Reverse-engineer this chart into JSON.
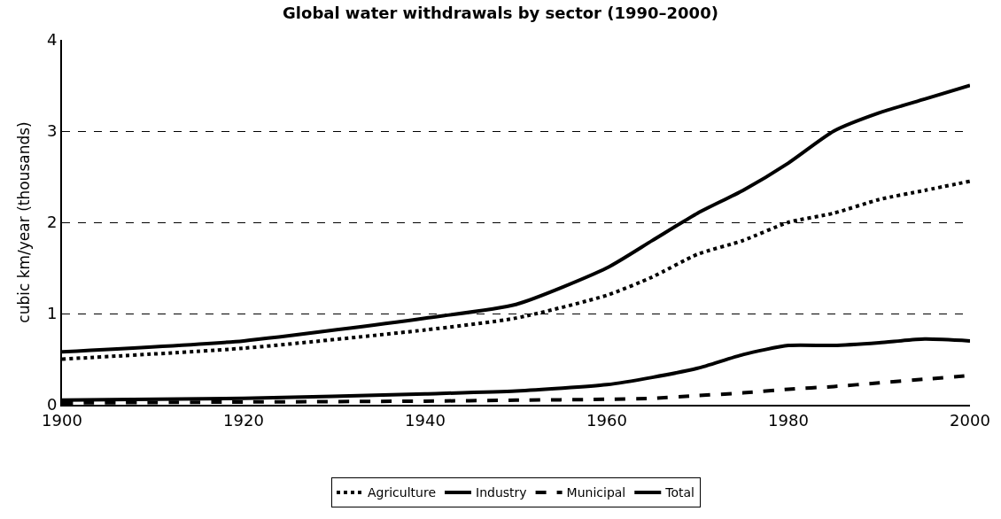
{
  "chart_data": {
    "type": "line",
    "title": "Global water withdrawals by sector (1990–2000)",
    "ylabel": "cubic km/year (thousands)",
    "x": [
      1900,
      1920,
      1940,
      1950,
      1960,
      1965,
      1970,
      1975,
      1980,
      1985,
      1990,
      1995,
      2000
    ],
    "series": [
      {
        "name": "Agriculture",
        "color": "#000000",
        "line_style": "dotted",
        "values": [
          0.5,
          0.62,
          0.82,
          0.95,
          1.2,
          1.4,
          1.65,
          1.8,
          2.0,
          2.1,
          2.25,
          2.35,
          2.45
        ]
      },
      {
        "name": "Industry",
        "color": "#000000",
        "line_style": "solid",
        "values": [
          0.05,
          0.07,
          0.12,
          0.15,
          0.22,
          0.3,
          0.4,
          0.55,
          0.65,
          0.65,
          0.68,
          0.72,
          0.7
        ]
      },
      {
        "name": "Municipal",
        "color": "#000000",
        "line_style": "dashed",
        "values": [
          0.02,
          0.03,
          0.04,
          0.05,
          0.06,
          0.07,
          0.1,
          0.13,
          0.17,
          0.2,
          0.24,
          0.28,
          0.32
        ]
      },
      {
        "name": "Total",
        "color": "#000000",
        "line_style": "solid",
        "values": [
          0.58,
          0.7,
          0.95,
          1.1,
          1.5,
          1.8,
          2.1,
          2.35,
          2.65,
          3.0,
          3.2,
          3.35,
          3.5
        ]
      }
    ],
    "xlim": [
      1900,
      2000
    ],
    "xticks": [
      1900,
      1920,
      1940,
      1960,
      1980,
      2000
    ],
    "ylim": [
      0,
      4
    ],
    "yticks": [
      0,
      1,
      2,
      3,
      4
    ],
    "grid": "y",
    "legend": "bottom",
    "marker": "none"
  }
}
